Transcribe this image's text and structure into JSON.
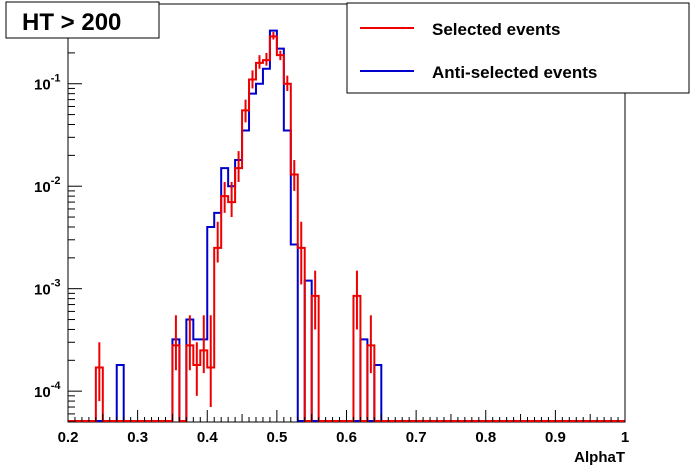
{
  "chart_data": {
    "type": "line",
    "title": "HT > 200",
    "xlabel": "AlphaT",
    "ylabel": "",
    "xlim": [
      0.2,
      1.0
    ],
    "ylim": [
      5e-05,
      0.6
    ],
    "ylog": true,
    "grid": false,
    "legend_position": "top-right",
    "bin_width": 0.01,
    "x_ticks": [
      {
        "v": 0.2,
        "label": "0.2"
      },
      {
        "v": 0.3,
        "label": "0.3"
      },
      {
        "v": 0.4,
        "label": "0.4"
      },
      {
        "v": 0.5,
        "label": "0.5"
      },
      {
        "v": 0.6,
        "label": "0.6"
      },
      {
        "v": 0.7,
        "label": "0.7"
      },
      {
        "v": 0.8,
        "label": "0.8"
      },
      {
        "v": 0.9,
        "label": "0.9"
      },
      {
        "v": 1.0,
        "label": "1"
      }
    ],
    "y_ticks": [
      {
        "v": 0.0001,
        "base": "10",
        "exp": "-4"
      },
      {
        "v": 0.001,
        "base": "10",
        "exp": "-3"
      },
      {
        "v": 0.01,
        "base": "10",
        "exp": "-2"
      },
      {
        "v": 0.1,
        "base": "10",
        "exp": "-1"
      }
    ],
    "series": [
      {
        "name": "Selected events",
        "color": "#ee0000",
        "bins": [
          {
            "x": 0.24,
            "y": 0.00017,
            "err": [
              8e-05,
              0.0003
            ]
          },
          {
            "x": 0.35,
            "y": 0.00028,
            "err": [
              0.00016,
              0.00055
            ]
          },
          {
            "x": 0.37,
            "y": 0.00028,
            "err": [
              0.00016,
              0.00055
            ]
          },
          {
            "x": 0.38,
            "y": 0.00018,
            "err": [
              9e-05,
              0.0003
            ]
          },
          {
            "x": 0.39,
            "y": 0.00025,
            "err": [
              0.00015,
              0.00055
            ]
          },
          {
            "x": 0.4,
            "y": 0.00017,
            "err": [
              7e-05,
              0.00055
            ]
          },
          {
            "x": 0.41,
            "y": 0.0025,
            "err": [
              0.0018,
              0.0045
            ]
          },
          {
            "x": 0.42,
            "y": 0.008,
            "err": [
              0.0055,
              0.011
            ]
          },
          {
            "x": 0.43,
            "y": 0.007,
            "err": [
              0.005,
              0.011
            ]
          },
          {
            "x": 0.44,
            "y": 0.015,
            "err": [
              0.011,
              0.022
            ]
          },
          {
            "x": 0.45,
            "y": 0.055,
            "err": [
              0.042,
              0.07
            ]
          },
          {
            "x": 0.46,
            "y": 0.11,
            "err": [
              0.09,
              0.135
            ]
          },
          {
            "x": 0.47,
            "y": 0.16,
            "err": [
              0.14,
              0.19
            ]
          },
          {
            "x": 0.48,
            "y": 0.17,
            "err": [
              0.15,
              0.2
            ]
          },
          {
            "x": 0.49,
            "y": 0.29,
            "err": [
              0.27,
              0.32
            ]
          },
          {
            "x": 0.5,
            "y": 0.19,
            "err": [
              0.17,
              0.21
            ]
          },
          {
            "x": 0.51,
            "y": 0.1,
            "err": [
              0.085,
              0.12
            ]
          },
          {
            "x": 0.52,
            "y": 0.013,
            "err": [
              0.009,
              0.018
            ]
          },
          {
            "x": 0.53,
            "y": 0.0025,
            "err": [
              0.0011,
              0.0045
            ]
          },
          {
            "x": 0.55,
            "y": 0.00085,
            "err": [
              0.0004,
              0.0015
            ]
          },
          {
            "x": 0.61,
            "y": 0.00085,
            "err": [
              0.0004,
              0.0015
            ]
          },
          {
            "x": 0.63,
            "y": 0.00028,
            "err": [
              0.00015,
              0.00055
            ]
          }
        ]
      },
      {
        "name": "Anti-selected events",
        "color": "#0000cc",
        "bins": [
          {
            "x": 0.27,
            "y": 0.00018
          },
          {
            "x": 0.35,
            "y": 0.00032
          },
          {
            "x": 0.37,
            "y": 0.0005
          },
          {
            "x": 0.38,
            "y": 0.00032
          },
          {
            "x": 0.39,
            "y": 0.00032
          },
          {
            "x": 0.4,
            "y": 0.004
          },
          {
            "x": 0.41,
            "y": 0.0055
          },
          {
            "x": 0.42,
            "y": 0.015
          },
          {
            "x": 0.43,
            "y": 0.01
          },
          {
            "x": 0.44,
            "y": 0.018
          },
          {
            "x": 0.45,
            "y": 0.035
          },
          {
            "x": 0.46,
            "y": 0.08
          },
          {
            "x": 0.47,
            "y": 0.1
          },
          {
            "x": 0.48,
            "y": 0.14
          },
          {
            "x": 0.49,
            "y": 0.33
          },
          {
            "x": 0.5,
            "y": 0.22
          },
          {
            "x": 0.51,
            "y": 0.035
          },
          {
            "x": 0.52,
            "y": 0.0027
          },
          {
            "x": 0.54,
            "y": 0.0012
          },
          {
            "x": 0.62,
            "y": 0.00032
          },
          {
            "x": 0.64,
            "y": 0.00018
          }
        ]
      }
    ]
  }
}
